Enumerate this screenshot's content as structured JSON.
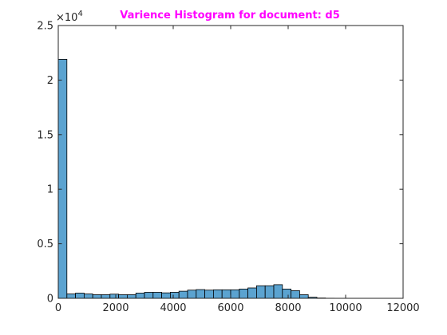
{
  "chart_data": {
    "type": "bar",
    "title": "Varience Histogram for document: d5",
    "title_color": "#ff00ff",
    "bar_color": "#5ba3d0",
    "bar_edge_color": "#000000",
    "xlabel": "",
    "ylabel": "",
    "xlim": [
      0,
      12000
    ],
    "ylim": [
      0,
      25000
    ],
    "y_multiplier_base": "×10",
    "y_multiplier_exp": "4",
    "x_ticks": [
      0,
      2000,
      4000,
      6000,
      8000,
      10000,
      12000
    ],
    "x_tick_labels": [
      "0",
      "2000",
      "4000",
      "6000",
      "8000",
      "10000",
      "12000"
    ],
    "y_ticks": [
      0,
      5000,
      10000,
      15000,
      20000,
      25000
    ],
    "y_tick_labels": [
      "0",
      "0.5",
      "1",
      "1.5",
      "2",
      "2.5"
    ],
    "grid": false,
    "bin_width": 300,
    "bin_start": 0,
    "values": [
      21900,
      400,
      480,
      400,
      330,
      330,
      380,
      330,
      330,
      480,
      550,
      550,
      500,
      550,
      650,
      750,
      800,
      750,
      780,
      780,
      780,
      850,
      950,
      1150,
      1150,
      1250,
      850,
      700,
      330,
      100,
      30,
      10,
      5,
      5,
      5,
      5,
      5,
      5,
      5
    ]
  }
}
